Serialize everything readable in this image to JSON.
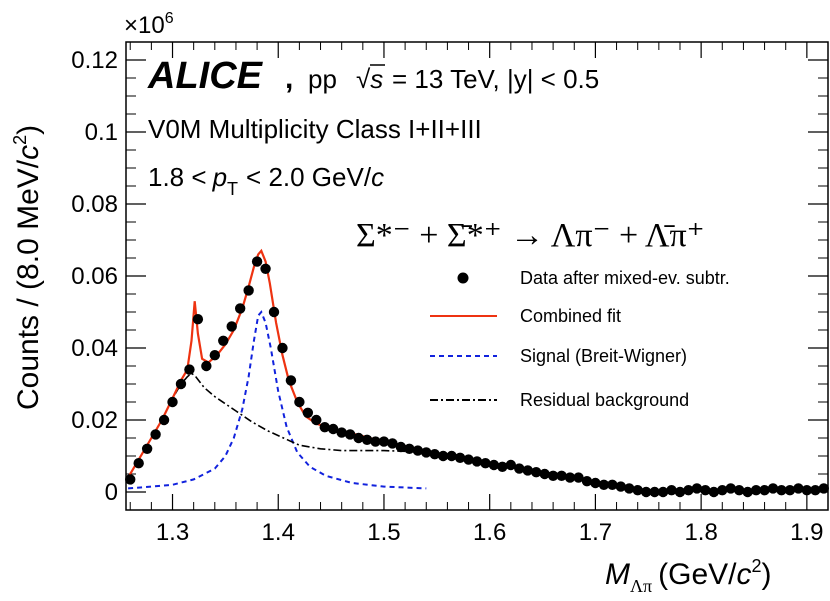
{
  "chart_data": {
    "type": "scatter",
    "experiment": "ALICE",
    "collision": "pp",
    "energy_label": "= 13 TeV, |y| < 0.5",
    "multiplicity": "V0M Multiplicity Class I+II+III",
    "pt_range": "1.8 < p_T < 2.0 GeV/c",
    "pt_prefix": "1.8 <",
    "pt_p": "p",
    "pt_sub": "T",
    "pt_suffix": "< 2.0 GeV/",
    "pt_c": "c",
    "decay_text": "Σ*⁻ + Σ̄*⁺ → Λπ⁻ + Λ̄π⁺",
    "sqrt_s": "√s",
    "ylabel": "Counts / (8.0 MeV/c²)",
    "xlabel": "M_Λπ (GeV/c²)",
    "ylabel_main": "Counts / (8.0 MeV/",
    "ylabel_c": "c",
    "ylabel_exp": "2",
    "ylabel_close": ")",
    "xlabel_M": "M",
    "xlabel_sub": "Λπ",
    "xlabel_main": "(GeV/",
    "xlabel_c": "c",
    "xlabel_exp": "2",
    "xlabel_close": ")",
    "y_multiplier": "×10",
    "y_multiplier_exp": "6",
    "xlim": [
      1.256,
      1.92
    ],
    "ylim": [
      -0.005,
      0.125
    ],
    "x_ticks": [
      1.3,
      1.4,
      1.5,
      1.6,
      1.7,
      1.8,
      1.9
    ],
    "x_tick_labels": [
      "1.3",
      "1.4",
      "1.5",
      "1.6",
      "1.7",
      "1.8",
      "1.9"
    ],
    "y_ticks": [
      0,
      0.02,
      0.04,
      0.06,
      0.08,
      0.1,
      0.12
    ],
    "y_tick_labels": [
      "0",
      "0.02",
      "0.04",
      "0.06",
      "0.08",
      "0.1",
      "0.12"
    ],
    "legend_position": "right",
    "legend": [
      {
        "name": "Data after mixed-ev. subtr.",
        "style": "marker",
        "color": "#000000"
      },
      {
        "name": "Combined fit",
        "style": "solid",
        "color": "#ee3311"
      },
      {
        "name": "Signal (Breit-Wigner)",
        "style": "dashed",
        "color": "#1122dd"
      },
      {
        "name": "Residual background",
        "style": "dashdot",
        "color": "#000000"
      }
    ],
    "data_points": {
      "x": [
        1.26,
        1.268,
        1.276,
        1.284,
        1.292,
        1.3,
        1.308,
        1.316,
        1.324,
        1.332,
        1.34,
        1.348,
        1.356,
        1.364,
        1.372,
        1.38,
        1.388,
        1.396,
        1.404,
        1.412,
        1.42,
        1.428,
        1.436,
        1.444,
        1.452,
        1.46,
        1.468,
        1.476,
        1.484,
        1.492,
        1.5,
        1.508,
        1.516,
        1.524,
        1.532,
        1.54,
        1.548,
        1.556,
        1.564,
        1.572,
        1.58,
        1.588,
        1.596,
        1.604,
        1.612,
        1.62,
        1.628,
        1.636,
        1.644,
        1.652,
        1.66,
        1.668,
        1.676,
        1.684,
        1.692,
        1.7,
        1.708,
        1.716,
        1.724,
        1.732,
        1.74,
        1.748,
        1.756,
        1.764,
        1.772,
        1.78,
        1.788,
        1.796,
        1.804,
        1.812,
        1.82,
        1.828,
        1.836,
        1.844,
        1.852,
        1.86,
        1.868,
        1.876,
        1.884,
        1.892,
        1.9,
        1.908,
        1.916
      ],
      "y": [
        0.0035,
        0.008,
        0.012,
        0.016,
        0.02,
        0.025,
        0.03,
        0.034,
        0.048,
        0.035,
        0.038,
        0.042,
        0.046,
        0.051,
        0.056,
        0.064,
        0.062,
        0.05,
        0.04,
        0.031,
        0.025,
        0.022,
        0.02,
        0.018,
        0.0175,
        0.0165,
        0.016,
        0.015,
        0.0145,
        0.014,
        0.014,
        0.0135,
        0.0125,
        0.012,
        0.0115,
        0.011,
        0.0105,
        0.01,
        0.01,
        0.0095,
        0.009,
        0.0085,
        0.008,
        0.0075,
        0.007,
        0.0075,
        0.0065,
        0.006,
        0.0055,
        0.005,
        0.0045,
        0.0045,
        0.004,
        0.004,
        0.003,
        0.0025,
        0.002,
        0.002,
        0.0015,
        0.001,
        0.0005,
        0.0,
        0.0,
        0.0,
        0.0005,
        0.0,
        0.0005,
        0.001,
        0.0005,
        0.0,
        0.0005,
        0.001,
        0.0005,
        0.0,
        0.0005,
        0.0005,
        0.001,
        0.0005,
        0.0005,
        0.001,
        0.0005,
        0.0005,
        0.001
      ]
    },
    "combined_fit": {
      "x": [
        1.258,
        1.27,
        1.28,
        1.29,
        1.3,
        1.308,
        1.314,
        1.318,
        1.321,
        1.324,
        1.328,
        1.334,
        1.342,
        1.35,
        1.358,
        1.366,
        1.372,
        1.377,
        1.381,
        1.384,
        1.388,
        1.392,
        1.398,
        1.404,
        1.41,
        1.418,
        1.426,
        1.436,
        1.446,
        1.46,
        1.48,
        1.5,
        1.52,
        1.54
      ],
      "y": [
        0.004,
        0.01,
        0.015,
        0.02,
        0.026,
        0.031,
        0.034,
        0.042,
        0.053,
        0.044,
        0.037,
        0.036,
        0.038,
        0.041,
        0.045,
        0.051,
        0.057,
        0.0625,
        0.066,
        0.067,
        0.064,
        0.058,
        0.047,
        0.038,
        0.031,
        0.025,
        0.021,
        0.019,
        0.018,
        0.017,
        0.0155,
        0.014,
        0.0128,
        0.0115
      ]
    },
    "signal_bw": {
      "x": [
        1.258,
        1.28,
        1.3,
        1.32,
        1.34,
        1.35,
        1.358,
        1.366,
        1.372,
        1.377,
        1.381,
        1.384,
        1.388,
        1.393,
        1.4,
        1.408,
        1.418,
        1.43,
        1.445,
        1.47,
        1.5,
        1.54
      ],
      "y": [
        0.001,
        0.0015,
        0.002,
        0.0035,
        0.0065,
        0.01,
        0.015,
        0.023,
        0.032,
        0.042,
        0.049,
        0.05,
        0.047,
        0.04,
        0.028,
        0.018,
        0.011,
        0.007,
        0.0045,
        0.0025,
        0.0015,
        0.001
      ]
    },
    "residual_bg": {
      "x": [
        1.258,
        1.27,
        1.28,
        1.29,
        1.3,
        1.308,
        1.314,
        1.318,
        1.322,
        1.33,
        1.34,
        1.35,
        1.36,
        1.375,
        1.39,
        1.405,
        1.42,
        1.44,
        1.46,
        1.48,
        1.5,
        1.52,
        1.54
      ],
      "y": [
        0.004,
        0.01,
        0.015,
        0.02,
        0.026,
        0.03,
        0.032,
        0.033,
        0.032,
        0.029,
        0.0265,
        0.0245,
        0.0225,
        0.0195,
        0.017,
        0.015,
        0.013,
        0.012,
        0.0115,
        0.0115,
        0.0115,
        0.0113,
        0.011
      ]
    }
  }
}
